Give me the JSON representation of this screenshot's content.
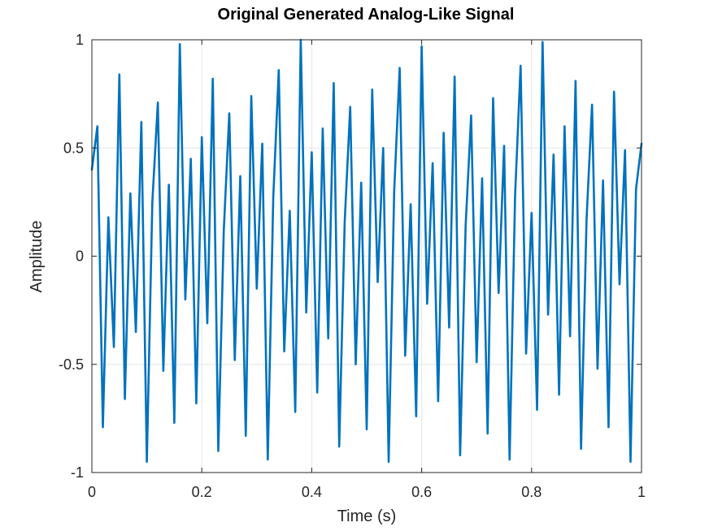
{
  "chart_data": {
    "type": "line",
    "title": "Original Generated Analog-Like Signal",
    "xlabel": "Time (s)",
    "ylabel": "Amplitude",
    "xlim": [
      0,
      1
    ],
    "ylim": [
      -1,
      1
    ],
    "grid": true,
    "xticks": [
      0,
      0.2,
      0.4,
      0.6,
      0.8,
      1
    ],
    "xtick_labels": [
      "0",
      "0.2",
      "0.4",
      "0.6",
      "0.8",
      "1"
    ],
    "yticks": [
      -1,
      -0.5,
      0,
      0.5,
      1
    ],
    "ytick_labels": [
      "-1",
      "-0.5",
      "0",
      "0.5",
      "1"
    ],
    "series": [
      {
        "color": "#0072bd",
        "x": [
          0,
          0.01,
          0.02,
          0.03,
          0.04,
          0.05,
          0.06,
          0.07,
          0.08,
          0.09,
          0.1,
          0.11,
          0.12,
          0.13,
          0.14,
          0.15,
          0.16,
          0.17,
          0.18,
          0.19,
          0.2,
          0.21,
          0.22,
          0.23,
          0.24,
          0.25,
          0.26,
          0.27,
          0.28,
          0.29,
          0.3,
          0.31,
          0.32,
          0.33,
          0.34,
          0.35,
          0.36,
          0.37,
          0.38,
          0.39,
          0.4,
          0.41,
          0.42,
          0.43,
          0.44,
          0.45,
          0.46,
          0.47,
          0.48,
          0.49,
          0.5,
          0.51,
          0.52,
          0.53,
          0.54,
          0.55,
          0.56,
          0.57,
          0.58,
          0.59,
          0.6,
          0.61,
          0.62,
          0.63,
          0.64,
          0.65,
          0.66,
          0.67,
          0.68,
          0.69,
          0.7,
          0.71,
          0.72,
          0.73,
          0.74,
          0.75,
          0.76,
          0.77,
          0.78,
          0.79,
          0.8,
          0.81,
          0.82,
          0.83,
          0.84,
          0.85,
          0.86,
          0.87,
          0.88,
          0.89,
          0.9,
          0.91,
          0.92,
          0.93,
          0.94,
          0.95,
          0.96,
          0.97,
          0.98,
          0.99,
          1
        ],
        "y": [
          0.4,
          0.6,
          -0.79,
          0.18,
          -0.42,
          0.84,
          -0.66,
          0.29,
          -0.35,
          0.62,
          -0.95,
          0.25,
          0.71,
          -0.53,
          0.33,
          -0.77,
          0.98,
          -0.2,
          0.45,
          -0.68,
          0.55,
          -0.31,
          0.82,
          -0.9,
          0.12,
          0.66,
          -0.48,
          0.37,
          -0.83,
          0.74,
          -0.15,
          0.52,
          -0.94,
          0.27,
          0.86,
          -0.44,
          0.21,
          -0.72,
          1.0,
          -0.26,
          0.48,
          -0.63,
          0.59,
          -0.38,
          0.8,
          -0.88,
          0.16,
          0.69,
          -0.5,
          0.34,
          -0.8,
          0.77,
          -0.12,
          0.5,
          -0.95,
          0.3,
          0.87,
          -0.46,
          0.24,
          -0.74,
          0.97,
          -0.22,
          0.43,
          -0.67,
          0.57,
          -0.33,
          0.83,
          -0.92,
          0.14,
          0.65,
          -0.49,
          0.36,
          -0.82,
          0.73,
          -0.17,
          0.51,
          -0.94,
          0.28,
          0.88,
          -0.45,
          0.2,
          -0.71,
          0.99,
          -0.27,
          0.47,
          -0.64,
          0.6,
          -0.37,
          0.81,
          -0.89,
          0.17,
          0.7,
          -0.52,
          0.35,
          -0.79,
          0.76,
          -0.13,
          0.49,
          -0.95,
          0.31,
          0.52
        ]
      }
    ]
  }
}
